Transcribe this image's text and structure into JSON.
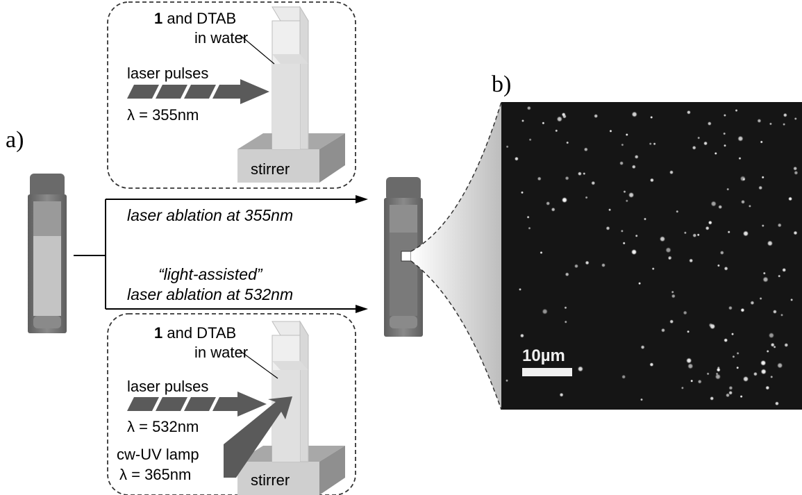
{
  "panel_labels": {
    "a": "a)",
    "b": "b)"
  },
  "top_inset": {
    "sample_bold": "1",
    "sample_rest": " and DTAB",
    "solvent": "in water",
    "laser_label": "laser pulses",
    "wavelength": "λ = 355nm",
    "stirrer": "stirrer"
  },
  "bottom_inset": {
    "sample_bold": "1",
    "sample_rest": " and DTAB",
    "solvent": "in water",
    "laser_label": "laser pulses",
    "wavelength": "λ = 532nm",
    "lamp_label": "cw-UV lamp",
    "lamp_wavelength": "λ = 365nm",
    "stirrer": "stirrer"
  },
  "arrows": {
    "upper": "laser ablation at 355nm",
    "lower_line1": "“light-assisted”",
    "lower_line2": "laser ablation at 532nm"
  },
  "micrograph": {
    "scale_bar": "10µm"
  },
  "colors": {
    "laser_arrow": "#5a5a5a",
    "cuvette_body": "#6e6e6e",
    "micrograph_bg": "#151515",
    "particle": "#f2f2f2"
  }
}
